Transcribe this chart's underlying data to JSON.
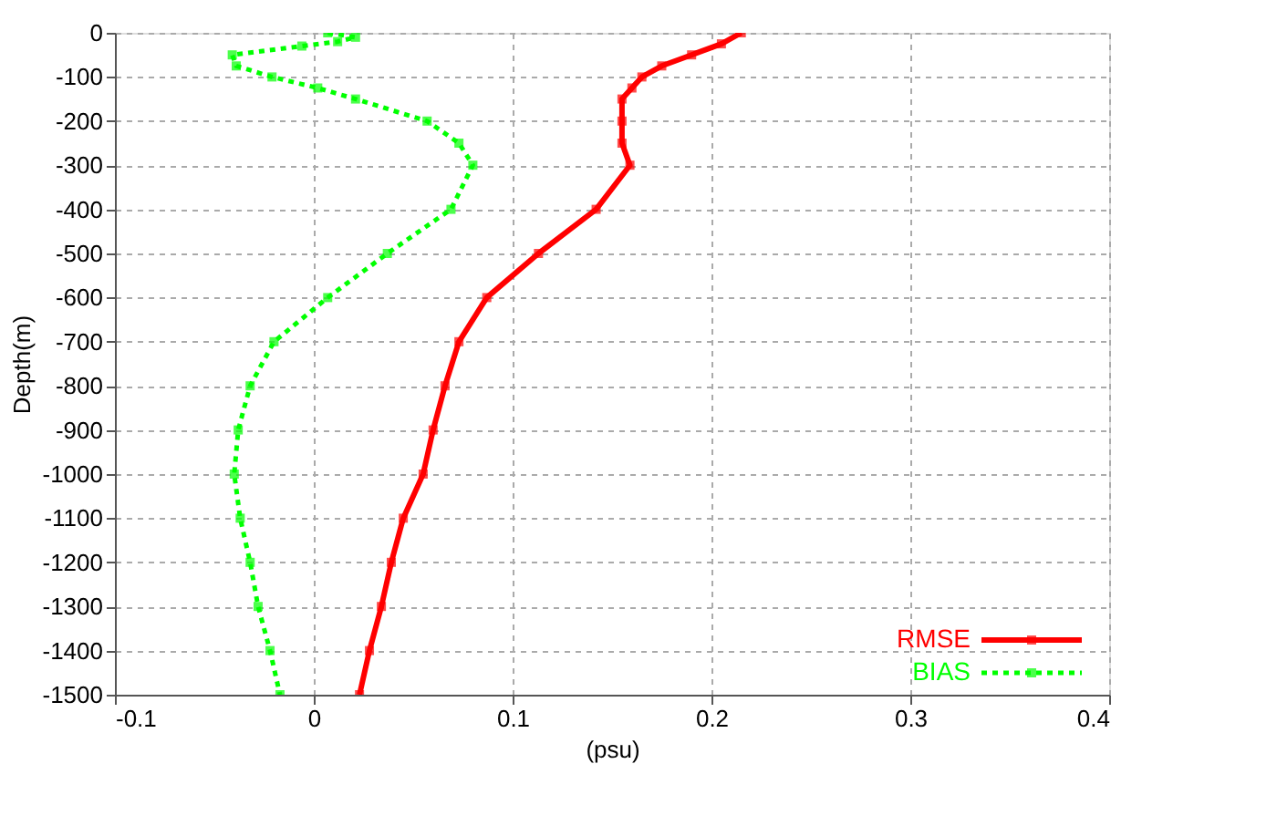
{
  "chart_data": {
    "type": "line",
    "xlabel": "(psu)",
    "ylabel": "Depth(m)",
    "xlim": [
      -0.1,
      0.4
    ],
    "xticks": [
      -0.1,
      0,
      0.1,
      0.2,
      0.3,
      0.4
    ],
    "ylim": [
      -1500,
      0
    ],
    "yticks": [
      0,
      -100,
      -200,
      -300,
      -400,
      -500,
      -600,
      -700,
      -800,
      -900,
      -1000,
      -1100,
      -1200,
      -1300,
      -1400,
      -1500
    ],
    "grid": true,
    "legend": "bottom right",
    "marker": "square",
    "series": [
      {
        "name": "RMSE",
        "color": "#ff0000",
        "line_style": "solid",
        "x": [
          0.215,
          0.205,
          0.19,
          0.175,
          0.165,
          0.16,
          0.155,
          0.155,
          0.155,
          0.159,
          0.142,
          0.113,
          0.087,
          0.073,
          0.066,
          0.06,
          0.055,
          0.045,
          0.039,
          0.034,
          0.028,
          0.023
        ],
        "values": [
          0,
          -25,
          -50,
          -75,
          -100,
          -125,
          -150,
          -200,
          -250,
          -300,
          -400,
          -500,
          -600,
          -700,
          -800,
          -900,
          -1000,
          -1100,
          -1200,
          -1300,
          -1400,
          -1500
        ]
      },
      {
        "name": "BIAS",
        "color": "#00ff00",
        "line_style": "dotted",
        "x": [
          0.007,
          0.021,
          0.012,
          -0.006,
          -0.041,
          -0.039,
          -0.021,
          0.002,
          0.021,
          0.057,
          0.073,
          0.08,
          0.069,
          0.037,
          0.007,
          -0.02,
          -0.032,
          -0.038,
          -0.04,
          -0.037,
          -0.032,
          -0.028,
          -0.022,
          -0.017
        ],
        "values": [
          0,
          -10,
          -20,
          -30,
          -50,
          -75,
          -100,
          -125,
          -150,
          -200,
          -250,
          -300,
          -400,
          -500,
          -600,
          -700,
          -800,
          -900,
          -1000,
          -1100,
          -1200,
          -1300,
          -1400,
          -1500
        ]
      }
    ]
  }
}
